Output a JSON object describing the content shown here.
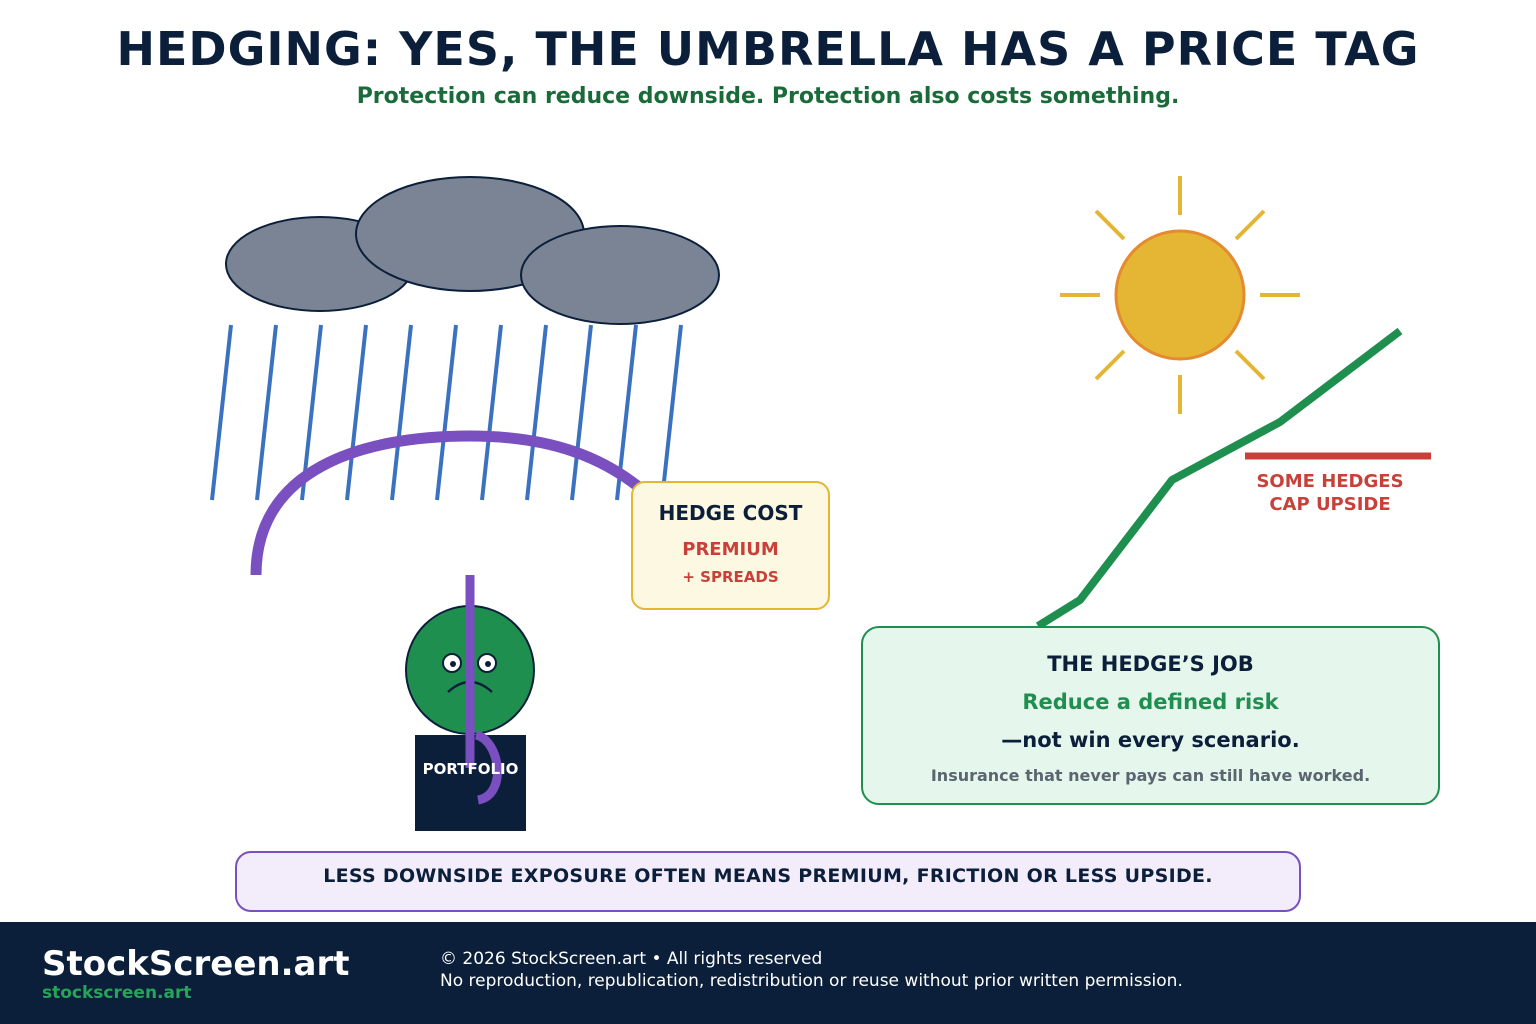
{
  "header": {
    "title": "HEDGING: YES, THE UMBRELLA HAS A PRICE TAG",
    "subtitle": "Protection can reduce downside. Protection also costs something."
  },
  "hedge_cost": {
    "title": "HEDGE COST",
    "premium": "PREMIUM",
    "spreads": "+ SPREADS"
  },
  "cap_label": {
    "line1": "SOME HEDGES",
    "line2": "CAP UPSIDE"
  },
  "portfolio": {
    "label": "PORTFOLIO"
  },
  "hedge_job": {
    "title": "THE HEDGE’S JOB",
    "line1": "Reduce a defined risk",
    "line2": "—not win every scenario.",
    "note": "Insurance that never pays can still have worked."
  },
  "bottom_message": "LESS DOWNSIDE EXPOSURE OFTEN MEANS PREMIUM, FRICTION OR LESS UPSIDE.",
  "footer": {
    "brand": "StockScreen.art",
    "url": "stockscreen.art",
    "copyright": "© 2026 StockScreen.art • All rights reserved",
    "notice": "No reproduction, republication, redistribution or reuse without prior written permission."
  },
  "colors": {
    "navy": "#0b1f3a",
    "green": "#1f8f4f",
    "red": "#c9403a",
    "purple": "#7a4fbf",
    "sun": "#e5b534",
    "cloud": "#7a8494",
    "rain": "#3a72c0"
  },
  "icons": [
    "storm-cloud-icon",
    "rain-icon",
    "umbrella-icon",
    "sun-icon",
    "worried-face-icon",
    "rising-line-icon"
  ]
}
